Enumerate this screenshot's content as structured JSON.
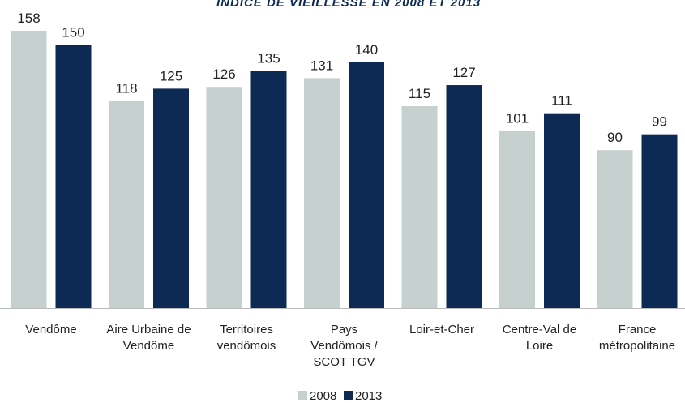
{
  "chart_data": {
    "type": "bar",
    "title": "INDICE DE VIEILLESSE EN 2008 ET 2013",
    "categories": [
      "Vendôme",
      "Aire Urbaine de Vendôme",
      "Territoires vendômois",
      "Pays Vendômois / SCOT TGV",
      "Loir-et-Cher",
      "Centre-Val de Loire",
      "France métropolitaine"
    ],
    "series": [
      {
        "name": "2008",
        "color": "#c5d0cf",
        "values": [
          158,
          118,
          126,
          131,
          115,
          101,
          90
        ]
      },
      {
        "name": "2013",
        "color": "#0d2a55",
        "values": [
          150,
          125,
          135,
          140,
          127,
          111,
          99
        ]
      }
    ],
    "legend": "bottom"
  }
}
